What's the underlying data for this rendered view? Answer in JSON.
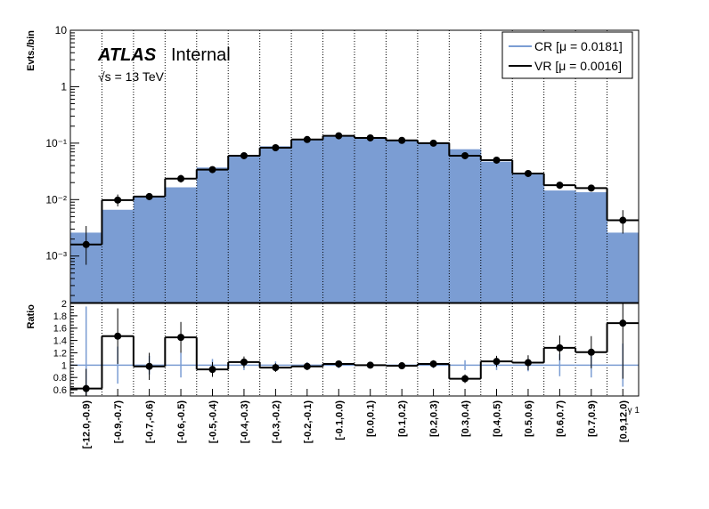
{
  "chart_data": {
    "type": "bar",
    "categories": [
      "[-12.0,-0.9)",
      "[-0.9,-0.7)",
      "[-0.7,-0.6)",
      "[-0.6,-0.5)",
      "[-0.5,-0.4)",
      "[-0.4,-0.3)",
      "[-0.3,-0.2)",
      "[-0.2,-0.1)",
      "[-0.1,0.0)",
      "[0.0,0.1)",
      "[0.1,0.2)",
      "[0.2,0.3)",
      "[0.3,0.4)",
      "[0.4,0.5)",
      "[0.5,0.6)",
      "[0.6,0.7)",
      "[0.7,0.9)",
      "[0.9,12.0)"
    ],
    "series": [
      {
        "name": "CR [μ = 0.0181]",
        "style": "filled-histogram",
        "color": "#7b9dd3",
        "values": [
          0.0026,
          0.0066,
          0.0115,
          0.0165,
          0.037,
          0.058,
          0.088,
          0.119,
          0.134,
          0.124,
          0.113,
          0.098,
          0.078,
          0.047,
          0.028,
          0.0145,
          0.0135,
          0.0026
        ]
      },
      {
        "name": "VR [μ = 0.0016]",
        "style": "points-with-step",
        "color": "#000000",
        "values": [
          0.0016,
          0.0098,
          0.0113,
          0.0235,
          0.034,
          0.06,
          0.083,
          0.116,
          0.135,
          0.124,
          0.112,
          0.1,
          0.06,
          0.05,
          0.029,
          0.018,
          0.016,
          0.0043
        ],
        "err_low": [
          0.0009,
          0.0022,
          0.0015,
          0.0035,
          0.004,
          0.004,
          0.005,
          0.006,
          0.006,
          0.006,
          0.006,
          0.005,
          0.004,
          0.004,
          0.003,
          0.0025,
          0.002,
          0.0018
        ],
        "err_high": [
          0.0018,
          0.0025,
          0.0015,
          0.004,
          0.004,
          0.004,
          0.005,
          0.006,
          0.006,
          0.006,
          0.006,
          0.005,
          0.004,
          0.004,
          0.003,
          0.0025,
          0.002,
          0.0022
        ]
      }
    ],
    "ratio": {
      "values": [
        0.62,
        1.47,
        0.98,
        1.45,
        0.93,
        1.05,
        0.96,
        0.98,
        1.02,
        1.0,
        0.99,
        1.02,
        0.78,
        1.06,
        1.04,
        1.28,
        1.21,
        1.68
      ],
      "err": [
        0.32,
        0.45,
        0.22,
        0.25,
        0.12,
        0.09,
        0.07,
        0.06,
        0.05,
        0.05,
        0.05,
        0.06,
        0.07,
        0.09,
        0.12,
        0.2,
        0.26,
        0.9
      ],
      "cr_err": [
        0.95,
        0.3,
        0.15,
        0.2,
        0.1,
        0.08,
        0.06,
        0.05,
        0.05,
        0.05,
        0.05,
        0.05,
        0.08,
        0.08,
        0.1,
        0.18,
        0.2,
        0.35
      ],
      "ylim": [
        0.5,
        2.0
      ],
      "yticks": [
        "0.6",
        "0.8",
        "1",
        "1.2",
        "1.4",
        "1.6",
        "1.8",
        "2"
      ]
    },
    "ylabel": "Evts./bin",
    "ratio_ylabel": "Ratio",
    "xlabel": "γ 1",
    "yscale": "log",
    "ylim": [
      0.00015,
      10
    ],
    "yticks": [
      "10⁻³",
      "10⁻²",
      "10⁻¹",
      "1",
      "10"
    ],
    "legend_position": "top-right",
    "grid": "vertical-dotted",
    "atlas_label": "ATLAS",
    "atlas_status": "Internal",
    "energy_label": "√s = 13 TeV"
  }
}
